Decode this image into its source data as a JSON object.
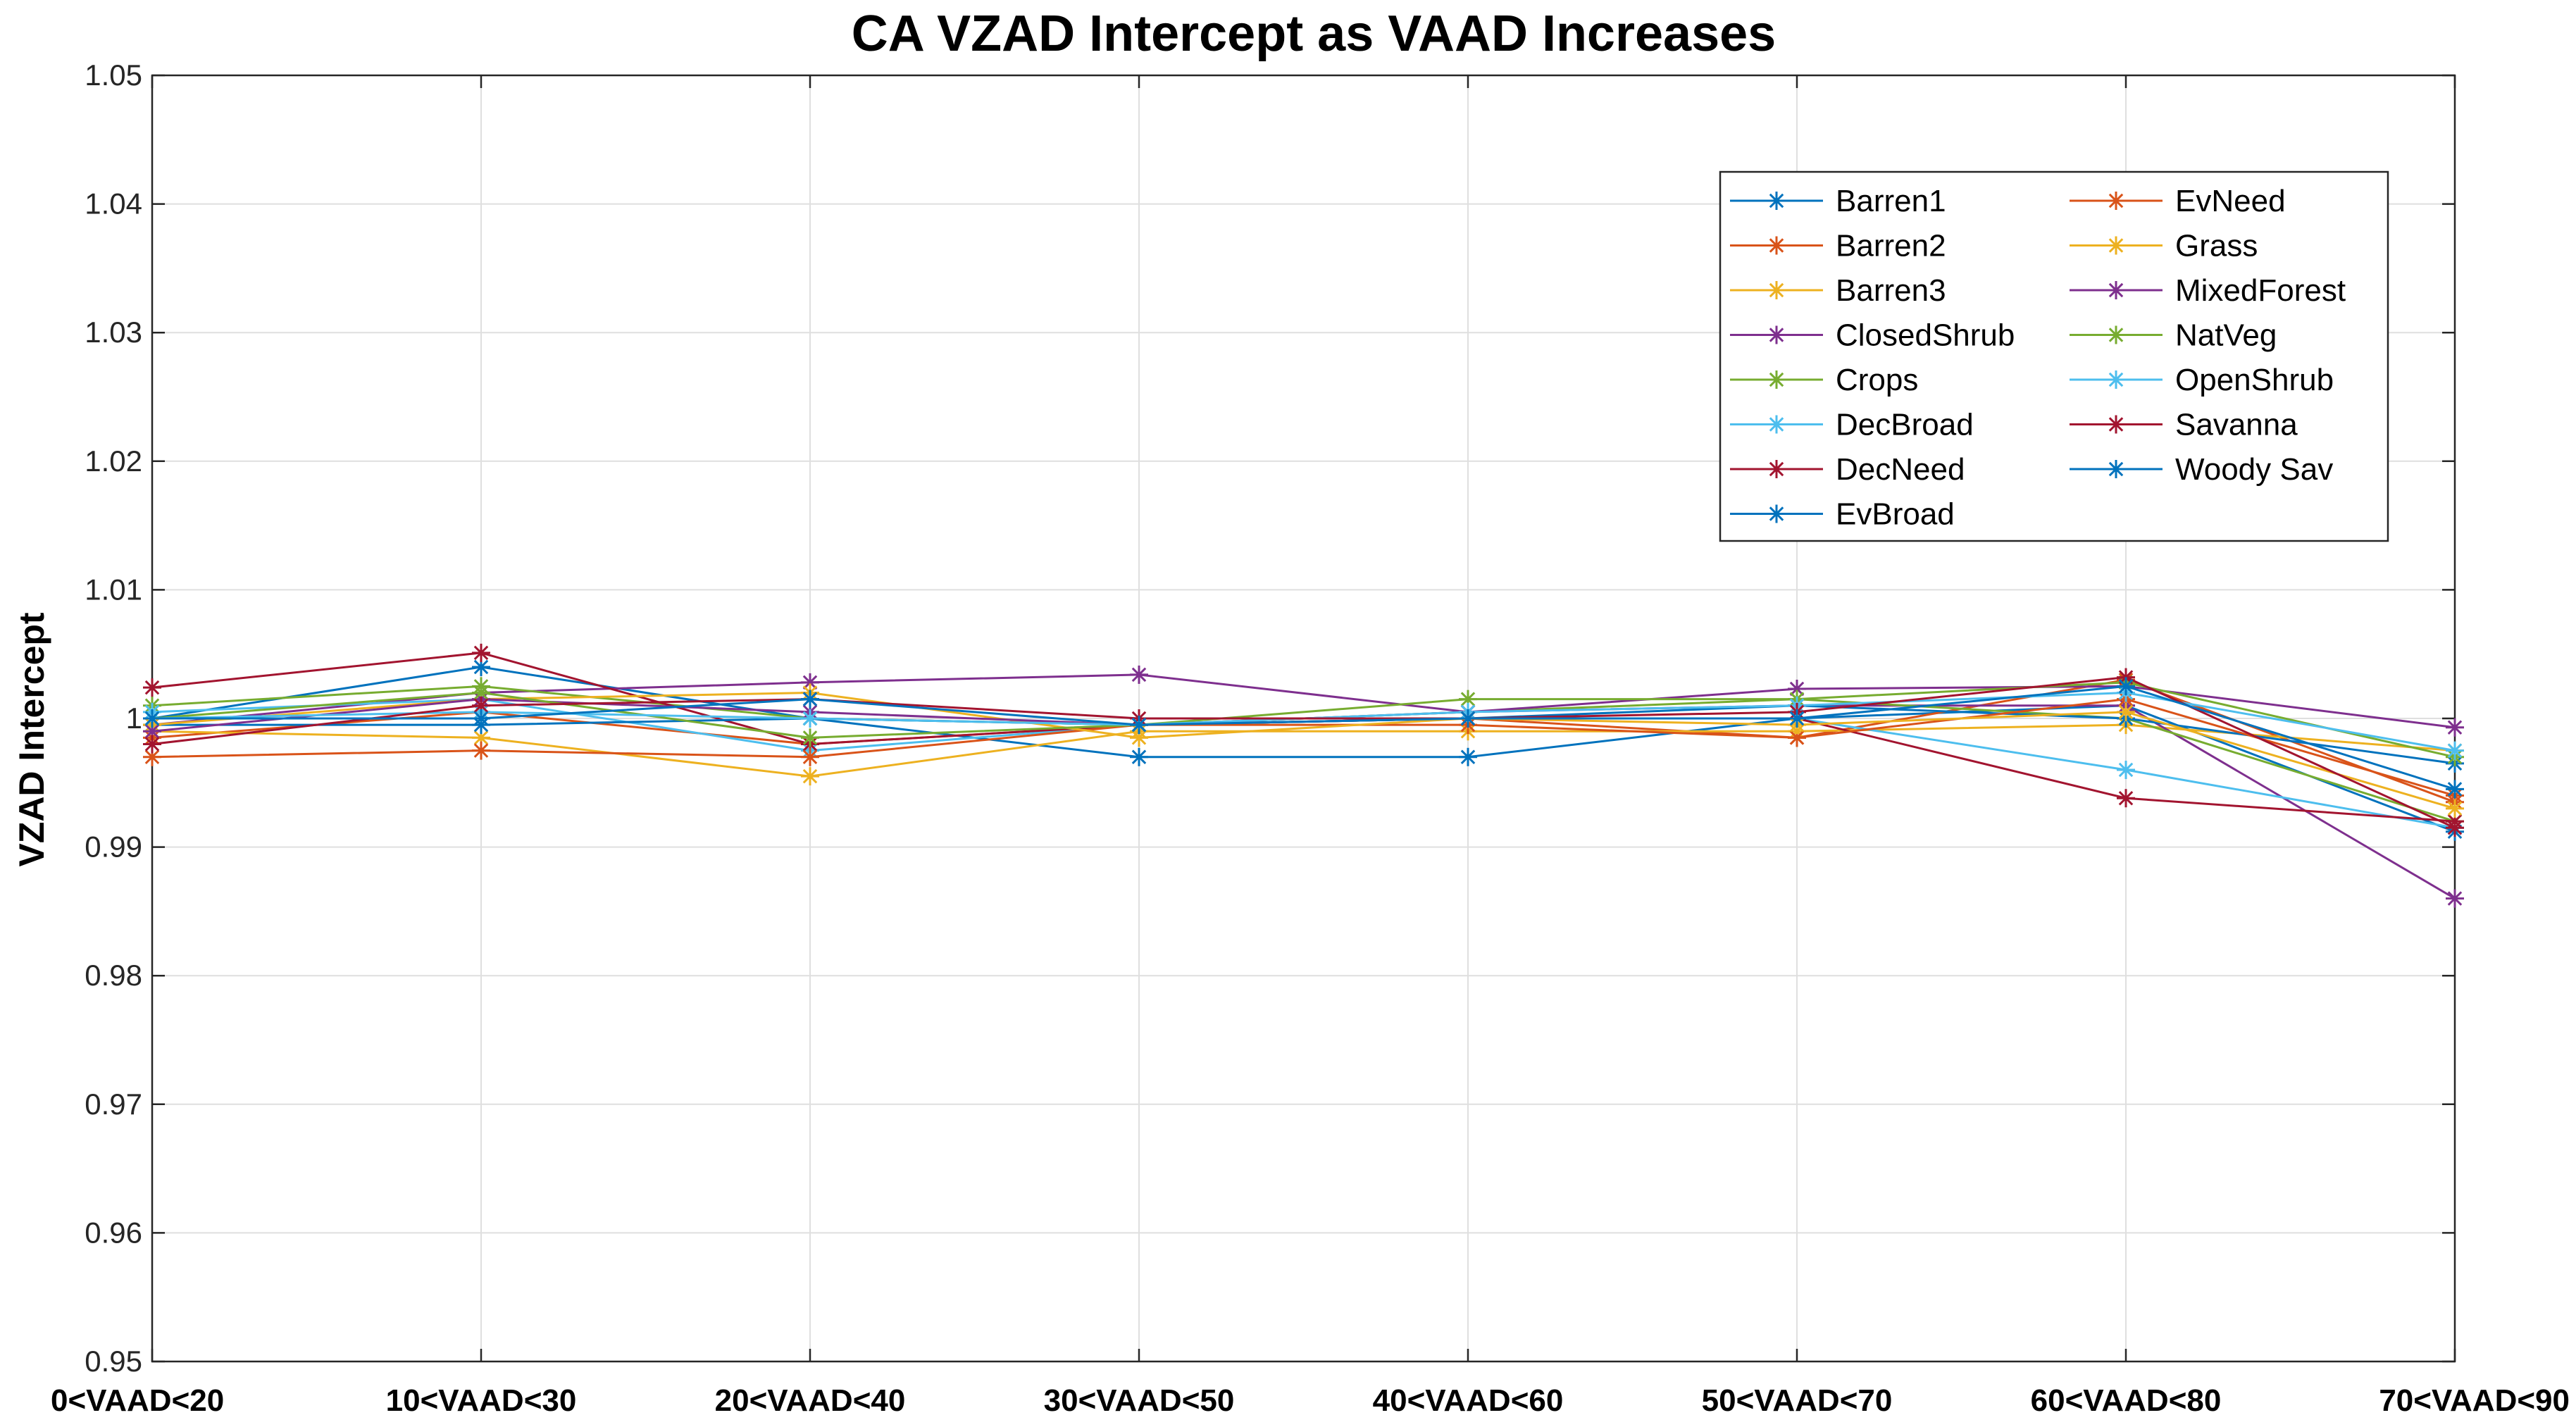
{
  "chart_data": {
    "type": "line",
    "title": "CA VZAD Intercept as VAAD Increases",
    "xlabel": "",
    "ylabel": "VZAD Intercept",
    "ylim": [
      0.95,
      1.05
    ],
    "yticks": [
      "0.95",
      "0.96",
      "0.97",
      "0.98",
      "0.99",
      "1",
      "1.01",
      "1.02",
      "1.03",
      "1.04",
      "1.05"
    ],
    "grid": true,
    "legend_position": "top-right",
    "categories": [
      "0<VAAD<20",
      "10<VAAD<30",
      "20<VAAD<40",
      "30<VAAD<50",
      "40<VAAD<60",
      "50<VAAD<70",
      "60<VAAD<80",
      "70<VAAD<90"
    ],
    "series": [
      {
        "name": "Barren1",
        "color": "#0072BD",
        "values": [
          1.0,
          1.004,
          1.0,
          0.997,
          0.997,
          1.0,
          1.001,
          0.9912
        ]
      },
      {
        "name": "Barren2",
        "color": "#D95319",
        "values": [
          0.9985,
          1.0005,
          0.998,
          0.9995,
          1.0,
          0.9985,
          1.003,
          0.9935
        ]
      },
      {
        "name": "Barren3",
        "color": "#EDB120",
        "values": [
          0.999,
          0.9985,
          0.9955,
          0.999,
          0.999,
          0.999,
          0.9995,
          0.9975
        ]
      },
      {
        "name": "ClosedShrub",
        "color": "#7E2F8E",
        "values": [
          0.9995,
          1.002,
          1.0028,
          1.0034,
          1.0005,
          1.001,
          1.001,
          0.986
        ]
      },
      {
        "name": "Crops",
        "color": "#77AC30",
        "values": [
          1.001,
          1.0025,
          1.0,
          0.9995,
          1.0005,
          1.0015,
          1.0,
          0.992
        ]
      },
      {
        "name": "DecBroad",
        "color": "#4DBEEE",
        "values": [
          1.0005,
          1.0015,
          0.9975,
          0.9995,
          1.0,
          1.0,
          0.996,
          0.9915
        ]
      },
      {
        "name": "DecNeed",
        "color": "#A2142F",
        "values": [
          1.0024,
          1.0051,
          0.998,
          0.9995,
          1.0,
          1.0,
          0.9938,
          0.992
        ]
      },
      {
        "name": "EvBroad",
        "color": "#0072BD",
        "values": [
          0.9995,
          0.9995,
          1.0,
          0.9995,
          1.0,
          1.001,
          1.0,
          0.9965
        ]
      },
      {
        "name": "EvNeed",
        "color": "#D95319",
        "values": [
          0.997,
          0.9975,
          0.997,
          0.9995,
          0.9995,
          0.9985,
          1.0015,
          0.994
        ]
      },
      {
        "name": "Grass",
        "color": "#EDB120",
        "values": [
          0.9995,
          1.0015,
          1.002,
          0.9985,
          1.0,
          0.9995,
          1.0005,
          0.993
        ]
      },
      {
        "name": "MixedForest",
        "color": "#7E2F8E",
        "values": [
          0.999,
          1.0015,
          1.0005,
          0.9995,
          1.0005,
          1.0023,
          1.0025,
          0.9993
        ]
      },
      {
        "name": "NatVeg",
        "color": "#77AC30",
        "values": [
          1.0,
          1.002,
          0.9985,
          0.9995,
          1.0015,
          1.0015,
          1.0028,
          0.997
        ]
      },
      {
        "name": "OpenShrub",
        "color": "#4DBEEE",
        "values": [
          1.0,
          1.0005,
          1.0,
          0.9995,
          1.0005,
          1.001,
          1.002,
          0.9975
        ]
      },
      {
        "name": "Savanna",
        "color": "#A2142F",
        "values": [
          0.998,
          1.001,
          1.0015,
          1.0,
          1.0,
          1.0005,
          1.0032,
          0.9915
        ]
      },
      {
        "name": "Woody Sav",
        "color": "#0072BD",
        "values": [
          1.0,
          1.0,
          1.0015,
          0.9995,
          1.0,
          1.0,
          1.0025,
          0.9945
        ]
      }
    ]
  }
}
